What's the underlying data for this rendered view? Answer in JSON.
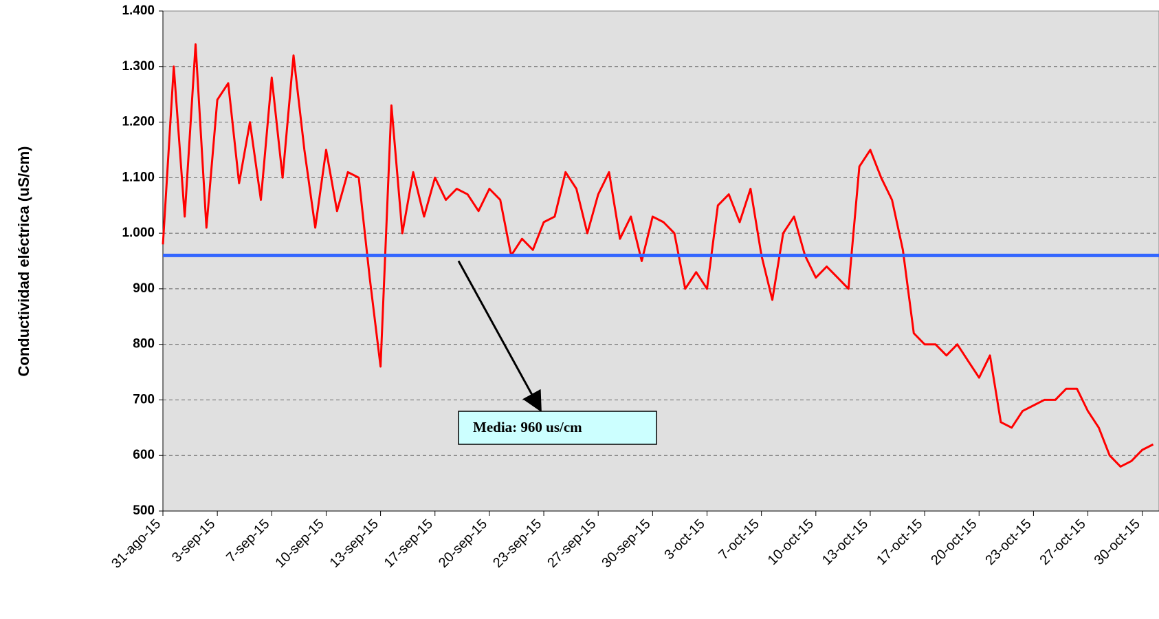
{
  "chart_data": {
    "type": "line",
    "y_label": "Conductividad eléctrica (uS/cm)",
    "categories": [
      "31-ago-15",
      null,
      null,
      null,
      null,
      "3-sep-15",
      null,
      null,
      null,
      null,
      "7-sep-15",
      null,
      null,
      null,
      null,
      "10-sep-15",
      null,
      null,
      null,
      null,
      "13-sep-15",
      null,
      null,
      null,
      null,
      "17-sep-15",
      null,
      null,
      null,
      null,
      "20-sep-15",
      null,
      null,
      null,
      null,
      "23-sep-15",
      null,
      null,
      null,
      null,
      "27-sep-15",
      null,
      null,
      null,
      null,
      "30-sep-15",
      null,
      null,
      null,
      null,
      "3-oct-15",
      null,
      null,
      null,
      null,
      "7-oct-15",
      null,
      null,
      null,
      null,
      "10-oct-15",
      null,
      null,
      null,
      null,
      "13-oct-15",
      null,
      null,
      null,
      null,
      "17-oct-15",
      null,
      null,
      null,
      null,
      "20-oct-15",
      null,
      null,
      null,
      null,
      "23-oct-15",
      null,
      null,
      null,
      null,
      "27-oct-15",
      null,
      null,
      null,
      null,
      "30-oct-15",
      null
    ],
    "series": [
      {
        "color": "#ff0000",
        "values": [
          980,
          1300,
          1030,
          1340,
          1010,
          1240,
          1270,
          1090,
          1200,
          1060,
          1280,
          1100,
          1320,
          1150,
          1010,
          1150,
          1040,
          1110,
          1100,
          920,
          760,
          1230,
          1000,
          1110,
          1030,
          1100,
          1060,
          1080,
          1070,
          1040,
          1080,
          1060,
          960,
          990,
          970,
          1020,
          1030,
          1110,
          1080,
          1000,
          1070,
          1110,
          990,
          1030,
          950,
          1030,
          1020,
          1000,
          900,
          930,
          900,
          1050,
          1070,
          1020,
          1080,
          960,
          880,
          1000,
          1030,
          960,
          920,
          940,
          920,
          900,
          1120,
          1150,
          1100,
          1060,
          970,
          820,
          800,
          800,
          780,
          800,
          770,
          740,
          780,
          660,
          650,
          680,
          690,
          700,
          700,
          720,
          720,
          680,
          650,
          600,
          580,
          590,
          610,
          620
        ]
      }
    ],
    "mean": 960,
    "mean_color": "#3366ff",
    "annotation": "Media: 960 us/cm",
    "ylim": [
      500,
      1400
    ],
    "yticks": [
      500,
      600,
      700,
      800,
      900,
      {
        "value": 1000,
        "label": "1.000"
      },
      {
        "value": 1100,
        "label": "1.100"
      },
      {
        "value": 1200,
        "label": "1.200"
      },
      {
        "value": 1300,
        "label": "1.300"
      },
      {
        "value": 1400,
        "label": "1.400"
      }
    ],
    "grid": true
  }
}
